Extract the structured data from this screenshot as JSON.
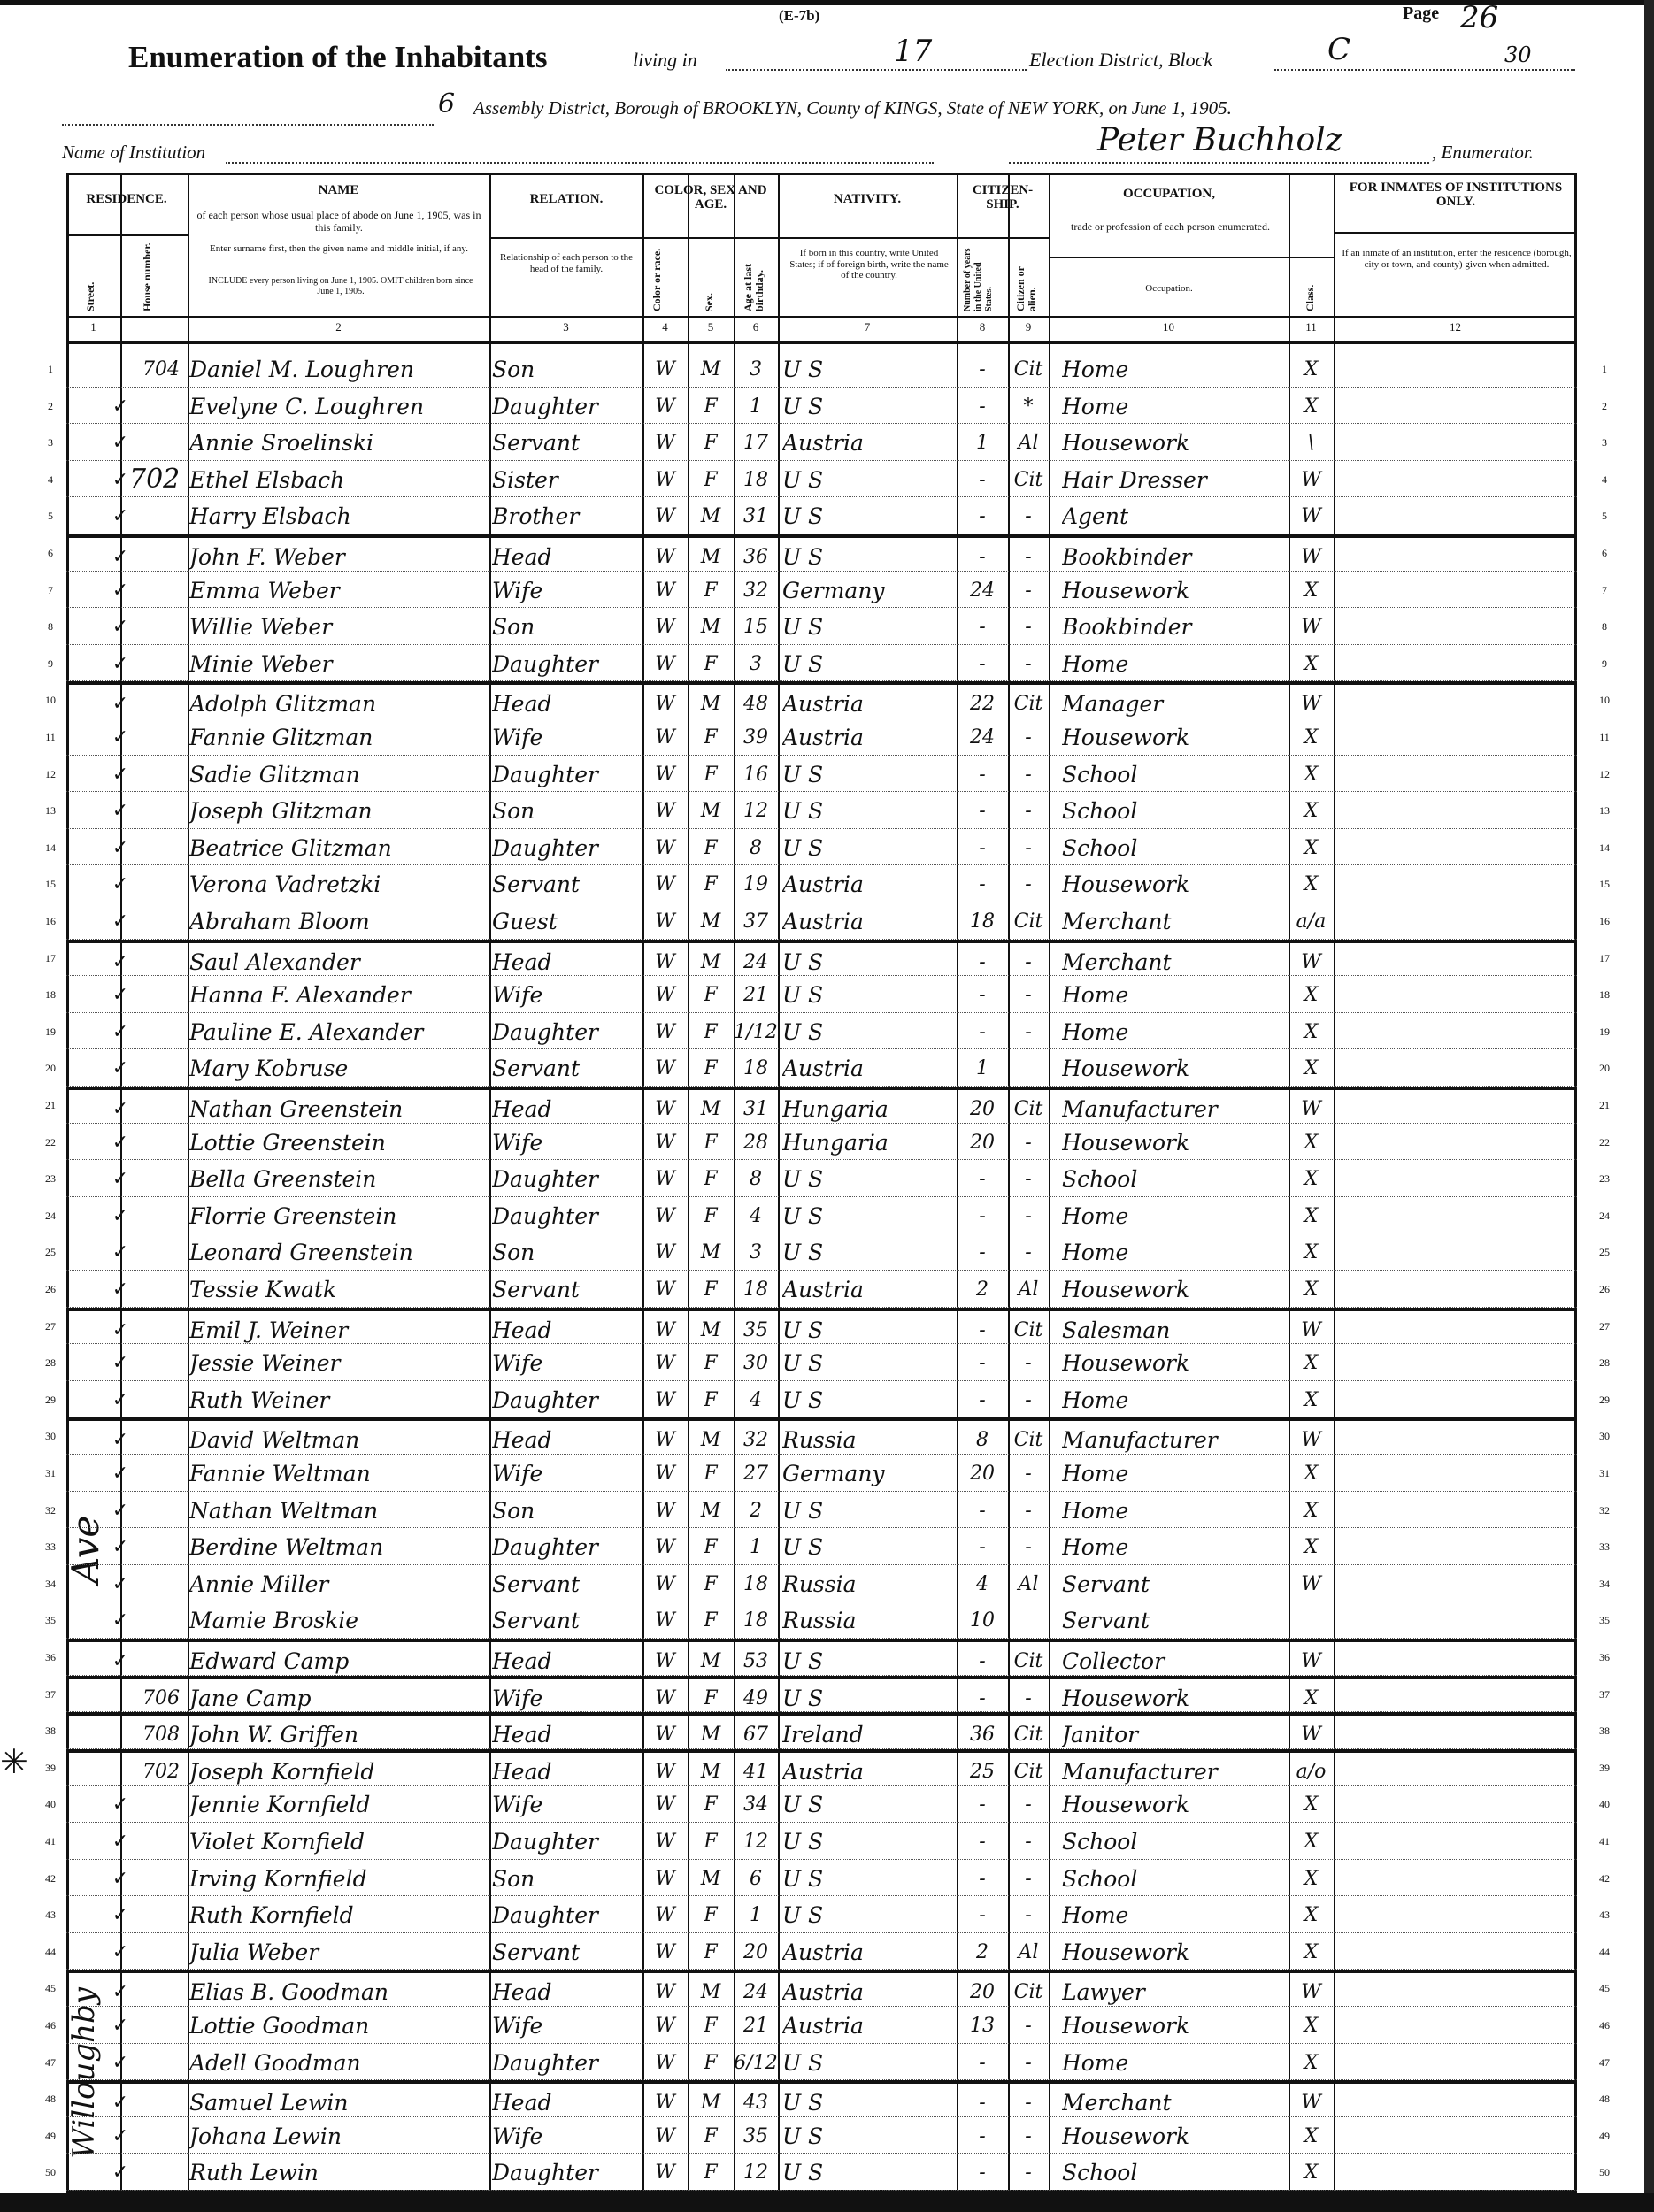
{
  "header": {
    "form_code": "(E-7b)",
    "page_label": "Page",
    "page_value": "26",
    "title": "Enumeration of the Inhabitants",
    "living_in_label": "living in",
    "election_district": "17",
    "election_district_label": "Election District, Block",
    "block_value": "C",
    "block_number": "30",
    "assembly_district": "6",
    "assembly_line": "Assembly District, Borough of BROOKLYN, County of KINGS, State of NEW YORK, on June 1, 1905.",
    "institution_label": "Name of Institution",
    "enumerator_name": "Peter Buchholz",
    "enumerator_label": ", Enumerator."
  },
  "columns": {
    "residence": "RESIDENCE.",
    "street": "Street.",
    "house_number": "House number.",
    "name": "NAME",
    "name_desc1": "of each person whose usual place of abode on June 1, 1905, was in this family.",
    "name_desc2": "Enter surname first, then the given name and middle initial, if any.",
    "name_desc3": "INCLUDE every person living on June 1, 1905. OMIT children born since June 1, 1905.",
    "relation": "RELATION.",
    "relation_desc": "Relationship of each person to the head of the family.",
    "color_sex_age": "COLOR, SEX AND AGE.",
    "color": "Color or race.",
    "sex": "Sex.",
    "age": "Age at last birthday.",
    "nativity": "NATIVITY.",
    "nativity_desc": "If born in this country, write United States; if of foreign birth, write the name of the country.",
    "citizenship": "CITIZEN-SHIP.",
    "years_in_us": "Number of years in the United States.",
    "citizen_or_alien": "Citizen or alien.",
    "occupation": "OCCUPATION,",
    "occupation_desc": "trade or profession of each person enumerated.",
    "occupation_sub": "Occupation.",
    "class": "Class.",
    "inmates": "FOR INMATES OF INSTITUTIONS ONLY.",
    "inmates_desc": "If an inmate of an institution, enter the residence (borough, city or town, and county) given when admitted.",
    "numbers": [
      "1",
      "2",
      "3",
      "4",
      "5",
      "6",
      "7",
      "8",
      "9",
      "10",
      "11",
      "12"
    ]
  },
  "margin_notes": [
    "702",
    "Ave",
    "Willoughby"
  ],
  "rows": [
    [
      "704",
      "Daniel M. Loughren",
      "Son",
      "W",
      "M",
      "3",
      "U S",
      "-",
      "Cit",
      "Home",
      "X"
    ],
    [
      "",
      "Evelyne C. Loughren",
      "Daughter",
      "W",
      "F",
      "1",
      "U S",
      "-",
      "*",
      "Home",
      "X"
    ],
    [
      "",
      "Annie Sroelinski",
      "Servant",
      "W",
      "F",
      "17",
      "Austria",
      "1",
      "Al",
      "Housework",
      "\\"
    ],
    [
      "",
      "Ethel Elsbach",
      "Sister",
      "W",
      "F",
      "18",
      "U S",
      "-",
      "Cit",
      "Hair Dresser",
      "W"
    ],
    [
      "",
      "Harry Elsbach",
      "Brother",
      "W",
      "M",
      "31",
      "U S",
      "-",
      "-",
      "Agent",
      "W"
    ],
    [
      "",
      "John F. Weber",
      "Head",
      "W",
      "M",
      "36",
      "U S",
      "-",
      "-",
      "Bookbinder",
      "W"
    ],
    [
      "",
      "Emma Weber",
      "Wife",
      "W",
      "F",
      "32",
      "Germany",
      "24",
      "-",
      "Housework",
      "X"
    ],
    [
      "",
      "Willie Weber",
      "Son",
      "W",
      "M",
      "15",
      "U S",
      "-",
      "-",
      "Bookbinder",
      "W"
    ],
    [
      "",
      "Minie Weber",
      "Daughter",
      "W",
      "F",
      "3",
      "U S",
      "-",
      "-",
      "Home",
      "X"
    ],
    [
      "",
      "Adolph Glitzman",
      "Head",
      "W",
      "M",
      "48",
      "Austria",
      "22",
      "Cit",
      "Manager",
      "W"
    ],
    [
      "",
      "Fannie Glitzman",
      "Wife",
      "W",
      "F",
      "39",
      "Austria",
      "24",
      "-",
      "Housework",
      "X"
    ],
    [
      "",
      "Sadie Glitzman",
      "Daughter",
      "W",
      "F",
      "16",
      "U S",
      "-",
      "-",
      "School",
      "X"
    ],
    [
      "",
      "Joseph Glitzman",
      "Son",
      "W",
      "M",
      "12",
      "U S",
      "-",
      "-",
      "School",
      "X"
    ],
    [
      "",
      "Beatrice Glitzman",
      "Daughter",
      "W",
      "F",
      "8",
      "U S",
      "-",
      "-",
      "School",
      "X"
    ],
    [
      "",
      "Verona Vadretzki",
      "Servant",
      "W",
      "F",
      "19",
      "Austria",
      "-",
      "-",
      "Housework",
      "X"
    ],
    [
      "",
      "Abraham Bloom",
      "Guest",
      "W",
      "M",
      "37",
      "Austria",
      "18",
      "Cit",
      "Merchant",
      "a/a"
    ],
    [
      "",
      "Saul Alexander",
      "Head",
      "W",
      "M",
      "24",
      "U S",
      "-",
      "-",
      "Merchant",
      "W"
    ],
    [
      "",
      "Hanna F. Alexander",
      "Wife",
      "W",
      "F",
      "21",
      "U S",
      "-",
      "-",
      "Home",
      "X"
    ],
    [
      "",
      "Pauline E. Alexander",
      "Daughter",
      "W",
      "F",
      "1/12",
      "U S",
      "-",
      "-",
      "Home",
      "X"
    ],
    [
      "",
      "Mary Kobruse",
      "Servant",
      "W",
      "F",
      "18",
      "Austria",
      "1",
      "",
      "Housework",
      "X"
    ],
    [
      "",
      "Nathan Greenstein",
      "Head",
      "W",
      "M",
      "31",
      "Hungaria",
      "20",
      "Cit",
      "Manufacturer",
      "W"
    ],
    [
      "",
      "Lottie Greenstein",
      "Wife",
      "W",
      "F",
      "28",
      "Hungaria",
      "20",
      "-",
      "Housework",
      "X"
    ],
    [
      "",
      "Bella Greenstein",
      "Daughter",
      "W",
      "F",
      "8",
      "U S",
      "-",
      "-",
      "School",
      "X"
    ],
    [
      "",
      "Florrie Greenstein",
      "Daughter",
      "W",
      "F",
      "4",
      "U S",
      "-",
      "-",
      "Home",
      "X"
    ],
    [
      "",
      "Leonard Greenstein",
      "Son",
      "W",
      "M",
      "3",
      "U S",
      "-",
      "-",
      "Home",
      "X"
    ],
    [
      "",
      "Tessie Kwatk",
      "Servant",
      "W",
      "F",
      "18",
      "Austria",
      "2",
      "Al",
      "Housework",
      "X"
    ],
    [
      "",
      "Emil J. Weiner",
      "Head",
      "W",
      "M",
      "35",
      "U S",
      "-",
      "Cit",
      "Salesman",
      "W"
    ],
    [
      "",
      "Jessie Weiner",
      "Wife",
      "W",
      "F",
      "30",
      "U S",
      "-",
      "-",
      "Housework",
      "X"
    ],
    [
      "",
      "Ruth Weiner",
      "Daughter",
      "W",
      "F",
      "4",
      "U S",
      "-",
      "-",
      "Home",
      "X"
    ],
    [
      "",
      "David Weltman",
      "Head",
      "W",
      "M",
      "32",
      "Russia",
      "8",
      "Cit",
      "Manufacturer",
      "W"
    ],
    [
      "",
      "Fannie Weltman",
      "Wife",
      "W",
      "F",
      "27",
      "Germany",
      "20",
      "-",
      "Home",
      "X"
    ],
    [
      "",
      "Nathan Weltman",
      "Son",
      "W",
      "M",
      "2",
      "U S",
      "-",
      "-",
      "Home",
      "X"
    ],
    [
      "",
      "Berdine Weltman",
      "Daughter",
      "W",
      "F",
      "1",
      "U S",
      "-",
      "-",
      "Home",
      "X"
    ],
    [
      "",
      "Annie Miller",
      "Servant",
      "W",
      "F",
      "18",
      "Russia",
      "4",
      "Al",
      "Servant",
      "W"
    ],
    [
      "",
      "Mamie Broskie",
      "Servant",
      "W",
      "F",
      "18",
      "Russia",
      "10",
      "",
      "Servant",
      ""
    ],
    [
      "",
      "Edward Camp",
      "Head",
      "W",
      "M",
      "53",
      "U S",
      "-",
      "Cit",
      "Collector",
      "W"
    ],
    [
      "706",
      "Jane Camp",
      "Wife",
      "W",
      "F",
      "49",
      "U S",
      "-",
      "-",
      "Housework",
      "X"
    ],
    [
      "708",
      "John W. Griffen",
      "Head",
      "W",
      "M",
      "67",
      "Ireland",
      "36",
      "Cit",
      "Janitor",
      "W"
    ],
    [
      "702",
      "Joseph Kornfield",
      "Head",
      "W",
      "M",
      "41",
      "Austria",
      "25",
      "Cit",
      "Manufacturer",
      "a/o"
    ],
    [
      "",
      "Jennie Kornfield",
      "Wife",
      "W",
      "F",
      "34",
      "U S",
      "-",
      "-",
      "Housework",
      "X"
    ],
    [
      "",
      "Violet Kornfield",
      "Daughter",
      "W",
      "F",
      "12",
      "U S",
      "-",
      "-",
      "School",
      "X"
    ],
    [
      "",
      "Irving Kornfield",
      "Son",
      "W",
      "M",
      "6",
      "U S",
      "-",
      "-",
      "School",
      "X"
    ],
    [
      "",
      "Ruth Kornfield",
      "Daughter",
      "W",
      "F",
      "1",
      "U S",
      "-",
      "-",
      "Home",
      "X"
    ],
    [
      "",
      "Julia Weber",
      "Servant",
      "W",
      "F",
      "20",
      "Austria",
      "2",
      "Al",
      "Housework",
      "X"
    ],
    [
      "",
      "Elias B. Goodman",
      "Head",
      "W",
      "M",
      "24",
      "Austria",
      "20",
      "Cit",
      "Lawyer",
      "W"
    ],
    [
      "",
      "Lottie Goodman",
      "Wife",
      "W",
      "F",
      "21",
      "Austria",
      "13",
      "-",
      "Housework",
      "X"
    ],
    [
      "",
      "Adell Goodman",
      "Daughter",
      "W",
      "F",
      "6/12",
      "U S",
      "-",
      "-",
      "Home",
      "X"
    ],
    [
      "",
      "Samuel Lewin",
      "Head",
      "W",
      "M",
      "43",
      "U S",
      "-",
      "-",
      "Merchant",
      "W"
    ],
    [
      "",
      "Johana Lewin",
      "Wife",
      "W",
      "F",
      "35",
      "U S",
      "-",
      "-",
      "Housework",
      "X"
    ],
    [
      "",
      "Ruth Lewin",
      "Daughter",
      "W",
      "F",
      "12",
      "U S",
      "-",
      "-",
      "School",
      "X"
    ]
  ]
}
